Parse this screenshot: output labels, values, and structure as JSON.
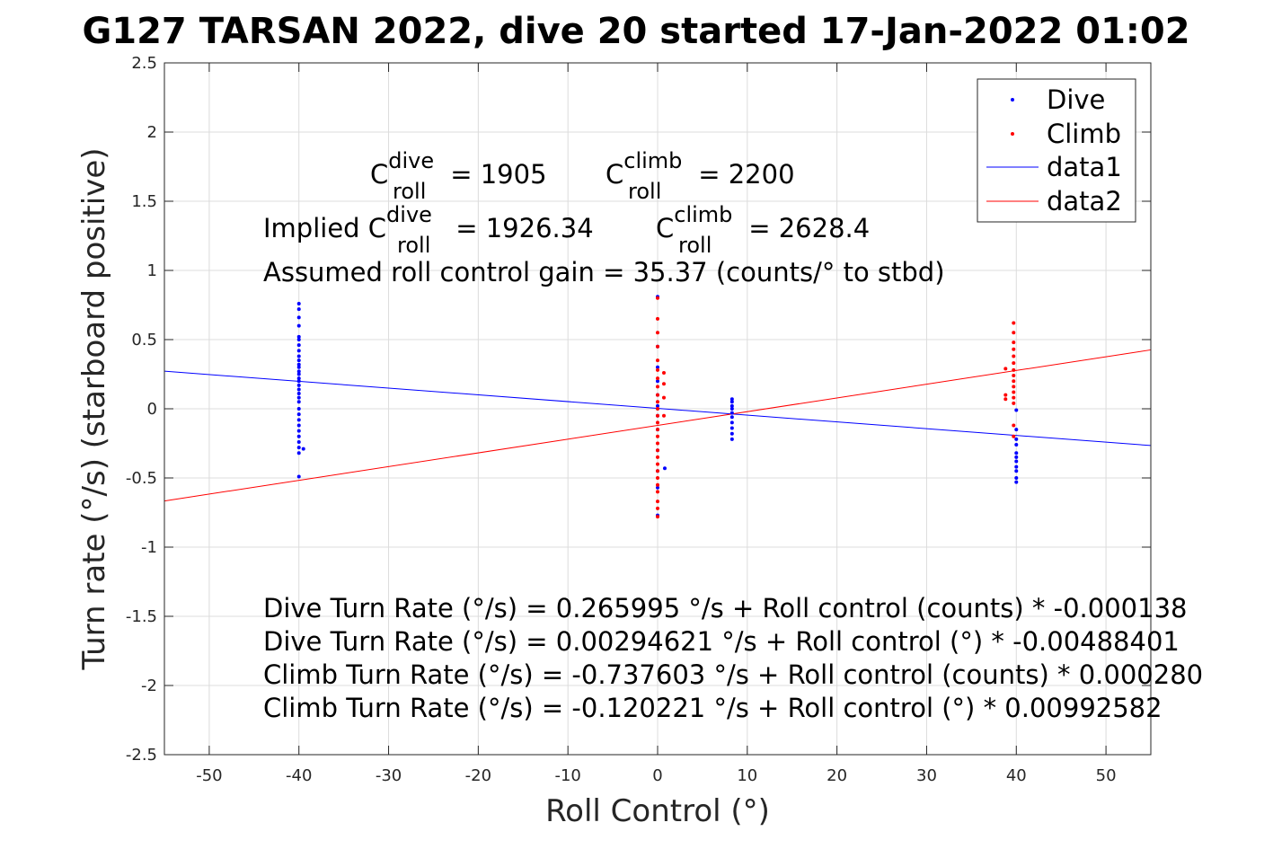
{
  "chart_data": {
    "type": "scatter",
    "title": "G127 TARSAN 2022, dive 20 started 17-Jan-2022 01:02",
    "xlabel": "Roll Control (°)",
    "ylabel": "Turn rate (°/s) (starboard positive)",
    "xlim": [
      -55,
      55
    ],
    "ylim": [
      -2.5,
      2.5
    ],
    "xticks": [
      -50,
      -40,
      -30,
      -20,
      -10,
      0,
      10,
      20,
      30,
      40,
      50
    ],
    "yticks": [
      -2.5,
      -2,
      -1.5,
      -1,
      -0.5,
      0,
      0.5,
      1,
      1.5,
      2,
      2.5
    ],
    "xtick_labels": [
      "-50",
      "-40",
      "-30",
      "-20",
      "-10",
      "0",
      "10",
      "20",
      "30",
      "40",
      "50"
    ],
    "ytick_labels": [
      "-2.5",
      "-2",
      "-1.5",
      "-1",
      "-0.5",
      "0",
      "0.5",
      "1",
      "1.5",
      "2",
      "2.5"
    ],
    "grid": true,
    "legend_position": "top-right",
    "colors": {
      "dive": "#0000ff",
      "climb": "#ff0000",
      "axis": "#262626",
      "grid": "#dcdcdc"
    },
    "series": [
      {
        "name": "Dive",
        "kind": "points",
        "color": "#0000ff",
        "clusters": [
          {
            "x": -40,
            "y": [
              0.76,
              0.72,
              0.66,
              0.6,
              0.52,
              0.5,
              0.46,
              0.42,
              0.38,
              0.35,
              0.32,
              0.3,
              0.27,
              0.25,
              0.22,
              0.2,
              0.17,
              0.14,
              0.11,
              0.08,
              0.05,
              0.0,
              -0.04,
              -0.08,
              -0.12,
              -0.16,
              -0.2,
              -0.24,
              -0.28,
              -0.32,
              -0.49
            ]
          },
          {
            "x": -39.5,
            "y": [
              -0.29
            ]
          },
          {
            "x": 0,
            "y": [
              0.81,
              0.45,
              0.3,
              0.2,
              0.1,
              0.02,
              -0.05,
              -0.15,
              -0.3,
              -0.45,
              -0.57,
              -0.77
            ]
          },
          {
            "x": 0.8,
            "y": [
              -0.43
            ]
          },
          {
            "x": 8.3,
            "y": [
              0.07,
              0.05,
              0.02,
              0.0,
              -0.03,
              -0.06,
              -0.1,
              -0.14,
              -0.18,
              -0.22
            ]
          },
          {
            "x": 40,
            "y": [
              -0.01,
              -0.15,
              -0.22,
              -0.26,
              -0.32,
              -0.35,
              -0.38,
              -0.42,
              -0.45,
              -0.5,
              -0.53
            ]
          }
        ]
      },
      {
        "name": "Climb",
        "kind": "points",
        "color": "#ff0000",
        "clusters": [
          {
            "x": 0,
            "y": [
              0.8,
              0.65,
              0.55,
              0.45,
              0.35,
              0.28,
              0.22,
              0.16,
              0.1,
              0.05,
              0.0,
              -0.05,
              -0.1,
              -0.15,
              -0.2,
              -0.25,
              -0.3,
              -0.35,
              -0.4,
              -0.45,
              -0.5,
              -0.55,
              -0.6,
              -0.67,
              -0.72,
              -0.78
            ]
          },
          {
            "x": 0.7,
            "y": [
              0.26,
              0.18,
              0.08,
              -0.05
            ]
          },
          {
            "x": 39.7,
            "y": [
              0.62,
              0.55,
              0.48,
              0.43,
              0.38,
              0.33,
              0.28,
              0.24,
              0.2,
              0.16,
              0.12,
              0.08,
              0.04,
              -0.12,
              -0.2
            ]
          },
          {
            "x": 38.8,
            "y": [
              0.29,
              0.1,
              0.07
            ]
          }
        ]
      },
      {
        "name": "data1",
        "kind": "line",
        "color": "#0000ff",
        "x": [
          -55,
          55
        ],
        "y": [
          0.2716,
          -0.2657
        ]
      },
      {
        "name": "data2",
        "kind": "line",
        "color": "#ff0000",
        "x": [
          -55,
          55
        ],
        "y": [
          -0.6661,
          0.4257
        ]
      }
    ],
    "legend": [
      "Dive",
      "Climb",
      "data1",
      "data2"
    ],
    "annotations": {
      "c_dive_base": "C",
      "c_dive_sup": "dive",
      "c_dive_sub": "roll",
      "c_dive_value": " = 1905",
      "c_climb_base": "C",
      "c_climb_sup": "climb",
      "c_climb_sub": "roll",
      "c_climb_value": " = 2200",
      "implied_prefix": "Implied C",
      "implied_dive_sup": "dive",
      "implied_dive_sub": "roll",
      "implied_dive_value": " = 1926.34",
      "implied_climb_base": "C",
      "implied_climb_sup": "climb",
      "implied_climb_sub": "roll",
      "implied_climb_value": " = 2628.4",
      "gain": "Assumed roll control gain = 35.37 (counts/° to stbd)",
      "eq1": "Dive Turn Rate (°/s) = 0.265995 °/s + Roll control (counts) * -0.000138",
      "eq2": "Dive Turn Rate (°/s) = 0.00294621 °/s + Roll control (°) * -0.00488401",
      "eq3": "Climb Turn Rate (°/s) = -0.737603 °/s + Roll control (counts) * 0.000280",
      "eq4": "Climb Turn Rate (°/s) = -0.120221 °/s + Roll control (°) * 0.00992582"
    }
  }
}
